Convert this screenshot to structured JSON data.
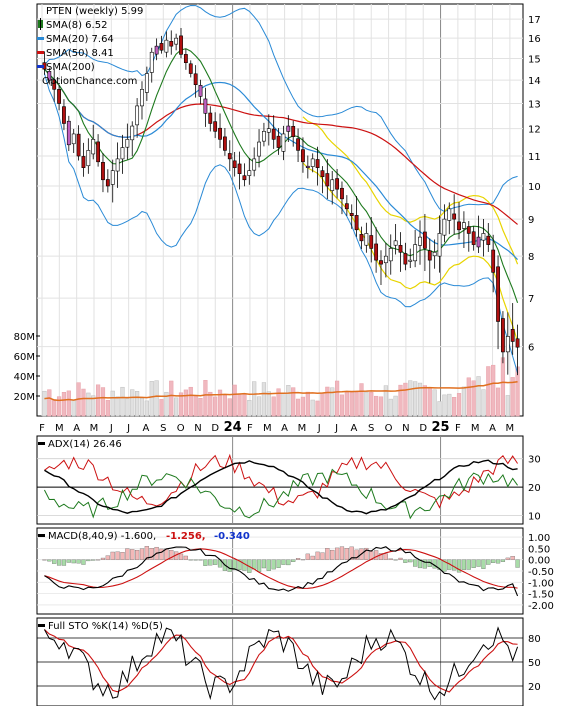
{
  "chart_data": [
    {
      "type": "candlestick",
      "panel": "price",
      "title": "PTEN (weekly) 5.99",
      "watermark": "OptionChance.com",
      "legend": [
        {
          "label": "SMA(8) 6.52",
          "color": "#1e7a1e"
        },
        {
          "label": "SMA(20) 7.64",
          "color": "#2a8ad6"
        },
        {
          "label": "SMA(50) 8.41",
          "color": "#cc1111"
        },
        {
          "label": "SMA(200)",
          "color": "#1133cc"
        }
      ],
      "x_ticks": [
        "F",
        "M",
        "A",
        "M",
        "J",
        "J",
        "A",
        "S",
        "O",
        "N",
        "D",
        "24",
        "F",
        "M",
        "A",
        "M",
        "J",
        "J",
        "A",
        "S",
        "O",
        "N",
        "D",
        "25",
        "F",
        "M",
        "A",
        "M"
      ],
      "y_ticks": [
        "17",
        "16",
        "15",
        "14",
        "13",
        "12",
        "11",
        "10",
        "9",
        "8",
        "7",
        "6"
      ],
      "ylim": [
        5,
        17.5
      ],
      "y_scale": "log",
      "volume_ticks": [
        "80M",
        "60M",
        "40M",
        "20M"
      ],
      "volume_lim": [
        0,
        90
      ],
      "closes": [
        14.5,
        14.0,
        13.6,
        13.0,
        12.2,
        11.4,
        11.8,
        11.0,
        10.6,
        11.2,
        11.6,
        10.8,
        10.2,
        10.0,
        10.5,
        10.9,
        11.3,
        11.6,
        12.1,
        12.9,
        13.6,
        14.3,
        15.3,
        15.6,
        15.4,
        15.9,
        15.6,
        16.0,
        15.2,
        14.8,
        14.3,
        13.8,
        13.3,
        12.6,
        12.2,
        11.9,
        11.6,
        11.2,
        10.9,
        10.6,
        10.4,
        10.2,
        10.5,
        10.9,
        11.5,
        11.9,
        12.0,
        11.6,
        11.3,
        11.8,
        12.1,
        11.7,
        11.2,
        10.8,
        10.6,
        10.9,
        10.6,
        10.3,
        10.0,
        10.2,
        9.9,
        9.6,
        9.3,
        9.1,
        8.7,
        8.4,
        8.6,
        8.2,
        7.9,
        7.8,
        8.0,
        8.2,
        8.4,
        8.1,
        7.8,
        7.9,
        8.3,
        8.5,
        8.2,
        7.9,
        8.1,
        8.6,
        9.0,
        9.3,
        9.0,
        8.7,
        8.9,
        8.6,
        8.3,
        8.5,
        8.6,
        8.3,
        7.6,
        6.5,
        5.9,
        6.2,
        6.1,
        5.99
      ],
      "sma8_last": 6.52,
      "sma20_last": 7.64,
      "sma50_last": 8.41
    },
    {
      "type": "line",
      "panel": "adx",
      "title": "ADX(14) 26.46",
      "y_ticks": [
        "30",
        "20",
        "10"
      ],
      "ylim": [
        7,
        38
      ],
      "series": [
        {
          "name": "ADX(14)",
          "color": "#000000",
          "last": 26.46
        },
        {
          "name": "+DI",
          "color": "#cc1111"
        },
        {
          "name": "-DI",
          "color": "#1e7a1e"
        }
      ]
    },
    {
      "type": "line",
      "panel": "macd",
      "title": "MACD(8,40,9) -1.600,",
      "values_text": [
        "-1.256,",
        "-0.340"
      ],
      "values_colors": [
        "#cc1111",
        "#1133cc"
      ],
      "y_ticks": [
        "1.00",
        "0.50",
        "0.00",
        "-0.50",
        "-1.00",
        "-1.50",
        "-2.00"
      ],
      "ylim": [
        -2.4,
        1.4
      ],
      "series": [
        {
          "name": "MACD",
          "color": "#000000",
          "last": -1.6
        },
        {
          "name": "Signal",
          "color": "#cc1111",
          "last": -1.256
        },
        {
          "name": "Histogram",
          "color": "#2f9e2f",
          "last": -0.34
        }
      ]
    },
    {
      "type": "line",
      "panel": "stochastic",
      "title": "Full STO %K(14) %D(5)",
      "y_ticks": [
        "80",
        "50",
        "20"
      ],
      "ylim": [
        0,
        100
      ],
      "series": [
        {
          "name": "%K(14)",
          "color": "#000000"
        },
        {
          "name": "%D(5)",
          "color": "#cc1111"
        }
      ]
    }
  ]
}
